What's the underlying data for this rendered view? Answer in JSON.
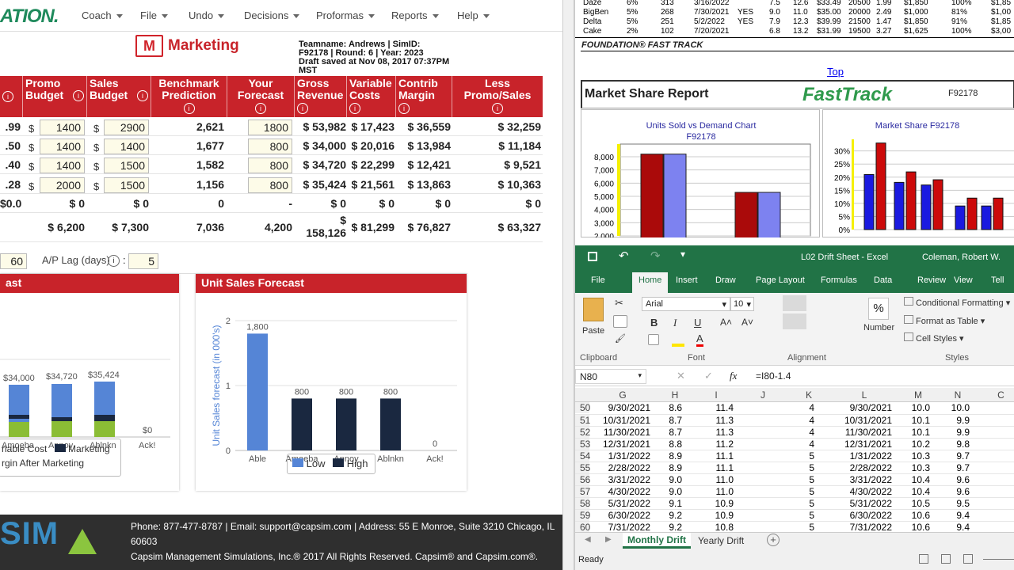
{
  "nav": {
    "logo": "ATION.",
    "items": [
      "Coach",
      "File",
      "Undo",
      "Decisions",
      "Proformas",
      "Reports",
      "Help"
    ]
  },
  "header": {
    "title": "Marketing",
    "team_line1": "Teamname: Andrews | SimID:",
    "team_line2": "F92178 | Round: 6 | Year: 2023",
    "team_line3": "Draft saved at Nov 08, 2017 07:37PM",
    "team_line4": "MST"
  },
  "table": {
    "headers": [
      "Promo Budget",
      "Sales Budget",
      "Benchmark Prediction",
      "Your Forecast",
      "Gross Revenue",
      "Variable Costs",
      "Contrib Margin",
      "Less Promo/Sales"
    ],
    "rows": [
      {
        "price": ".99",
        "promo": "1400",
        "sales": "2900",
        "bench": "2,621",
        "fc": "1800",
        "gross": "$ 53,982",
        "var": "$ 17,423",
        "cm": "$ 36,559",
        "less": "$ 32,259"
      },
      {
        "price": ".50",
        "promo": "1400",
        "sales": "1400",
        "bench": "1,677",
        "fc": "800",
        "gross": "$ 34,000",
        "var": "$ 20,016",
        "cm": "$ 13,984",
        "less": "$ 11,184"
      },
      {
        "price": ".40",
        "promo": "1400",
        "sales": "1500",
        "bench": "1,582",
        "fc": "800",
        "gross": "$ 34,720",
        "var": "$ 22,299",
        "cm": "$ 12,421",
        "less": "$ 9,521"
      },
      {
        "price": ".28",
        "promo": "2000",
        "sales": "1500",
        "bench": "1,156",
        "fc": "800",
        "gross": "$ 35,424",
        "var": "$ 21,561",
        "cm": "$ 13,863",
        "less": "$ 10,363"
      }
    ],
    "zero_row": {
      "price": "$0.0",
      "promo": "$ 0",
      "sales": "$ 0",
      "bench": "0",
      "fc": "-",
      "gross": "$ 0",
      "var": "$ 0",
      "cm": "$ 0",
      "less": "$ 0"
    },
    "total_row": {
      "promo": "$ 6,200",
      "sales": "$ 7,300",
      "bench": "7,036",
      "fc": "4,200",
      "gross_a": "$",
      "gross_b": "158,126",
      "var": "$ 81,299",
      "cm": "$ 76,827",
      "less": "$ 63,327"
    }
  },
  "settings": {
    "ar_value": "60",
    "ap_label": "A/P Lag (days)",
    "ap_value": "5"
  },
  "left_chart": {
    "title": "ast",
    "labels": [
      "$34,000",
      "$34,720",
      "$35,424",
      "$0"
    ],
    "cats": [
      "Amoeba",
      "Annoy",
      "Ablnkn",
      "Ack!"
    ],
    "legend1": "riable Cost",
    "legend2": "Marketing",
    "legend3": "rgin After Marketing"
  },
  "chart_data": [
    {
      "type": "bar",
      "title": "Unit Sales Forecast",
      "ylabel": "Unit Sales forecast (in 000's)",
      "categories": [
        "Able",
        "Amoeba",
        "Annoy",
        "Ablnkn",
        "Ack!"
      ],
      "series": [
        {
          "name": "Low",
          "values": [
            1800,
            null,
            null,
            null,
            null
          ]
        },
        {
          "name": "High",
          "values": [
            null,
            800,
            800,
            800,
            0
          ]
        }
      ],
      "data_labels": [
        "1,800",
        "800",
        "800",
        "800",
        "0"
      ],
      "yticks": [
        "0",
        "1",
        "2"
      ],
      "ylim": [
        0,
        2000
      ]
    },
    {
      "type": "bar",
      "title": "Units Sold vs Demand Chart\nF92178",
      "yticks": [
        "2,000",
        "3,000",
        "4,000",
        "5,000",
        "6,000",
        "7,000",
        "8,000"
      ],
      "series": [
        {
          "values": [
            8200,
            5300
          ]
        },
        {
          "values": [
            8200,
            5300
          ]
        }
      ],
      "ylim": [
        2000,
        8600
      ]
    },
    {
      "type": "bar",
      "title": "Market Share  F92178",
      "yticks": [
        "0%",
        "5%",
        "10%",
        "15%",
        "20%",
        "25%",
        "30%"
      ],
      "series": [
        {
          "values": [
            33,
            22,
            19,
            12,
            12
          ]
        },
        {
          "values": [
            21,
            18,
            17,
            9,
            9
          ]
        }
      ],
      "ylim": [
        0,
        32
      ]
    }
  ],
  "footer": {
    "brand": "SIM",
    "line1": "Phone: 877-477-8787 | Email: support@capsim.com | Address: 55 E Monroe, Suite 3210 Chicago, IL",
    "line2": "60603",
    "line3": "Capsim Management Simulations, Inc.® 2017   All Rights Reserved. Capsim® and Capsim.com®."
  },
  "report": {
    "rows": [
      [
        "Daze",
        "6%",
        "313",
        "3/16/2022",
        "",
        "7.5",
        "12.6",
        "$33.49",
        "20500",
        "1.99",
        "$1,850",
        "100%",
        "$1,85"
      ],
      [
        "BigBen",
        "5%",
        "268",
        "7/30/2021",
        "YES",
        "9.0",
        "11.0",
        "$35.00",
        "20000",
        "2.49",
        "$1,000",
        "81%",
        "$1,00"
      ],
      [
        "Delta",
        "5%",
        "251",
        "5/2/2022",
        "YES",
        "7.9",
        "12.3",
        "$39.99",
        "21500",
        "1.47",
        "$1,850",
        "91%",
        "$1,85"
      ],
      [
        "Cake",
        "2%",
        "102",
        "7/20/2021",
        "",
        "6.8",
        "13.2",
        "$31.99",
        "19500",
        "3.27",
        "$1,625",
        "100%",
        "$3,00"
      ]
    ],
    "fasttrack_label": "FOUNDATION® FAST TRACK",
    "top_link": "Top",
    "ms_title": "Market Share Report",
    "ms_logo": "FastTrack",
    "ms_id": "F92178"
  },
  "excel": {
    "title": "L02 Drift Sheet  -  Excel",
    "user": "Coleman, Robert W.",
    "tabs": [
      "File",
      "Home",
      "Insert",
      "Draw",
      "Page Layout",
      "Formulas",
      "Data",
      "Review",
      "View",
      "Tell"
    ],
    "font": "Arial",
    "size": "10",
    "groups": [
      "Clipboard",
      "Font",
      "Alignment",
      "Number",
      "Styles"
    ],
    "paste": "Paste",
    "number_label": "Number",
    "styles": [
      "Conditional Formatting",
      "Format as Table",
      "Cell Styles"
    ],
    "namebox": "N80",
    "formula": "=I80-1.4",
    "cols": [
      "G",
      "H",
      "I",
      "J",
      "K",
      "L",
      "M",
      "N",
      "C"
    ],
    "rows": [
      [
        "50",
        "9/30/2021",
        "8.6",
        "11.4",
        "4",
        "9/30/2021",
        "10.0",
        "10.0"
      ],
      [
        "51",
        "10/31/2021",
        "8.7",
        "11.3",
        "4",
        "10/31/2021",
        "10.1",
        "9.9"
      ],
      [
        "52",
        "11/30/2021",
        "8.7",
        "11.3",
        "4",
        "11/30/2021",
        "10.1",
        "9.9"
      ],
      [
        "53",
        "12/31/2021",
        "8.8",
        "11.2",
        "4",
        "12/31/2021",
        "10.2",
        "9.8"
      ],
      [
        "54",
        "1/31/2022",
        "8.9",
        "11.1",
        "5",
        "1/31/2022",
        "10.3",
        "9.7"
      ],
      [
        "55",
        "2/28/2022",
        "8.9",
        "11.1",
        "5",
        "2/28/2022",
        "10.3",
        "9.7"
      ],
      [
        "56",
        "3/31/2022",
        "9.0",
        "11.0",
        "5",
        "3/31/2022",
        "10.4",
        "9.6"
      ],
      [
        "57",
        "4/30/2022",
        "9.0",
        "11.0",
        "5",
        "4/30/2022",
        "10.4",
        "9.6"
      ],
      [
        "58",
        "5/31/2022",
        "9.1",
        "10.9",
        "5",
        "5/31/2022",
        "10.5",
        "9.5"
      ],
      [
        "59",
        "6/30/2022",
        "9.2",
        "10.9",
        "5",
        "6/30/2022",
        "10.6",
        "9.4"
      ],
      [
        "60",
        "7/31/2022",
        "9.2",
        "10.8",
        "5",
        "7/31/2022",
        "10.6",
        "9.4"
      ]
    ],
    "sheet1": "Monthly Drift",
    "sheet2": "Yearly Drift",
    "status": "Ready"
  }
}
